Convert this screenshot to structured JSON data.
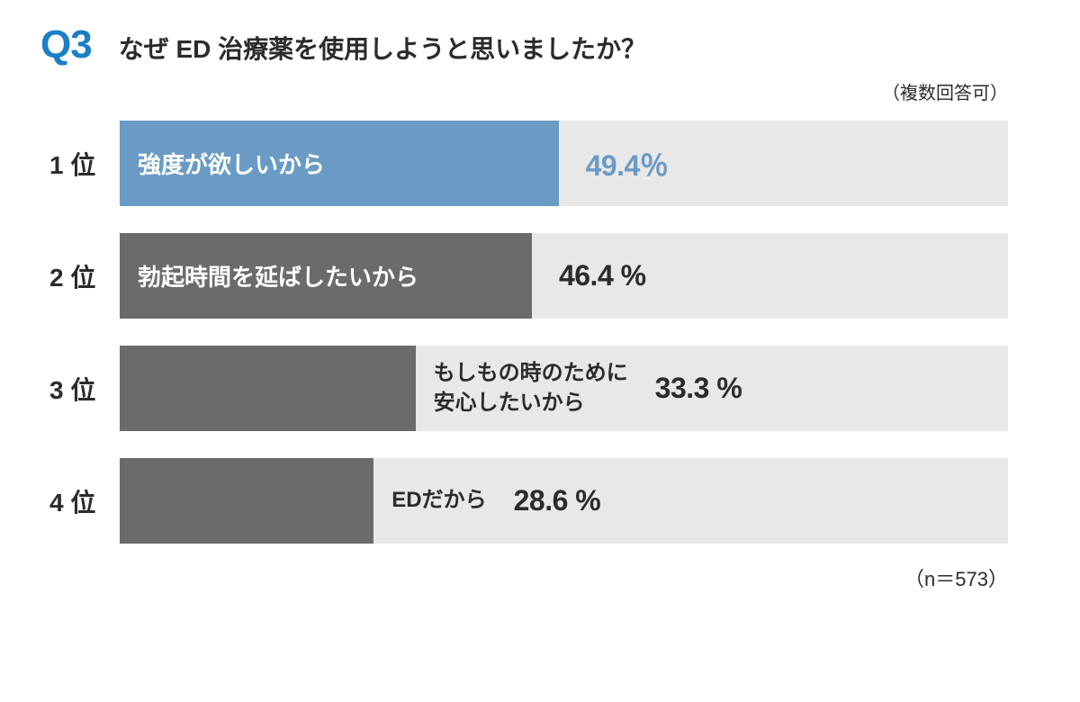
{
  "header": {
    "q_number": "Q3",
    "q_text": "なぜ ED 治療薬を使用しようと思いましたか？"
  },
  "note": "（複数回答可）",
  "footer": "（n＝573）",
  "chart": {
    "type": "bar",
    "background_color": "#e8e8e8",
    "bar_max_width_pct": 100,
    "scale_basis": 100,
    "items": [
      {
        "rank": "1 位",
        "label": "強度が欲しいから",
        "value": 49.4,
        "value_text": "49.4％",
        "bar_color": "#6a9bc4",
        "value_color": "#6a9bc4",
        "label_inside": true,
        "bar_width_pct": 49.4
      },
      {
        "rank": "2 位",
        "label": "勃起時間を延ばしたいから",
        "value": 46.4,
        "value_text": "46.4 %",
        "bar_color": "#6b6b6b",
        "value_color": "#2b2b2b",
        "label_inside": true,
        "bar_width_pct": 46.4
      },
      {
        "rank": "3 位",
        "label": "もしもの時のために\n安心したいから",
        "value": 33.3,
        "value_text": "33.3 %",
        "bar_color": "#6b6b6b",
        "value_color": "#2b2b2b",
        "label_inside": false,
        "bar_width_pct": 33.3
      },
      {
        "rank": "4 位",
        "label": "EDだから",
        "value": 28.6,
        "value_text": "28.6 %",
        "bar_color": "#6b6b6b",
        "value_color": "#2b2b2b",
        "label_inside": false,
        "bar_width_pct": 28.6
      }
    ]
  }
}
